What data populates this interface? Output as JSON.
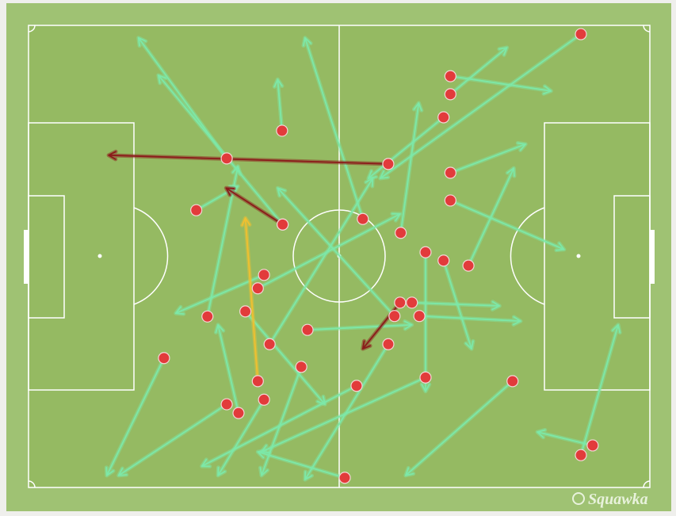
{
  "chart_data": {
    "type": "pass-map",
    "watermark": "Squawka",
    "xlim": [
      0,
      100
    ],
    "ylim": [
      0,
      100
    ],
    "dot_color": "#e23b3b",
    "passes": [
      {
        "x": 88.9,
        "y": 1.9,
        "end_x": 56.6,
        "end_y": 33.1,
        "color": "#7de8a8"
      },
      {
        "x": 67.9,
        "y": 11.0,
        "end_x": 84.1,
        "end_y": 14.2,
        "color": "#7de8a8"
      },
      {
        "x": 67.9,
        "y": 14.9,
        "end_x": 77.0,
        "end_y": 4.8,
        "color": "#7de8a8"
      },
      {
        "x": 66.8,
        "y": 19.9,
        "end_x": 54.7,
        "end_y": 33.1,
        "color": "#7de8a8"
      },
      {
        "x": 67.9,
        "y": 31.9,
        "end_x": 80.0,
        "end_y": 25.7,
        "color": "#7de8a8"
      },
      {
        "x": 67.9,
        "y": 37.9,
        "end_x": 86.2,
        "end_y": 48.5,
        "color": "#7de8a8"
      },
      {
        "x": 70.8,
        "y": 52.0,
        "end_x": 78.1,
        "end_y": 30.9,
        "color": "#7de8a8"
      },
      {
        "x": 66.8,
        "y": 50.9,
        "end_x": 71.3,
        "end_y": 70.0,
        "color": "#7de8a8"
      },
      {
        "x": 63.9,
        "y": 49.1,
        "end_x": 63.9,
        "end_y": 79.2,
        "color": "#7de8a8"
      },
      {
        "x": 59.9,
        "y": 44.9,
        "end_x": 62.8,
        "end_y": 16.8,
        "color": "#7de8a8"
      },
      {
        "x": 53.8,
        "y": 41.9,
        "end_x": 44.5,
        "end_y": 2.7,
        "color": "#7de8a8"
      },
      {
        "x": 40.8,
        "y": 22.8,
        "end_x": 40.1,
        "end_y": 11.7,
        "color": "#7de8a8"
      },
      {
        "x": 31.9,
        "y": 28.8,
        "end_x": 17.7,
        "end_y": 2.7,
        "color": "#7de8a8"
      },
      {
        "x": 27.0,
        "y": 40.0,
        "end_x": 33.7,
        "end_y": 34.8,
        "color": "#7de8a8"
      },
      {
        "x": 61.7,
        "y": 60.0,
        "end_x": 75.8,
        "end_y": 60.7,
        "color": "#7de8a8"
      },
      {
        "x": 62.9,
        "y": 62.9,
        "end_x": 79.2,
        "end_y": 64.0,
        "color": "#7de8a8"
      },
      {
        "x": 44.9,
        "y": 65.9,
        "end_x": 61.7,
        "end_y": 64.8,
        "color": "#7de8a8"
      },
      {
        "x": 21.8,
        "y": 72.0,
        "end_x": 12.6,
        "end_y": 97.4,
        "color": "#7de8a8"
      },
      {
        "x": 31.9,
        "y": 82.0,
        "end_x": 14.5,
        "end_y": 97.4,
        "color": "#7de8a8"
      },
      {
        "x": 57.9,
        "y": 69.0,
        "end_x": 44.5,
        "end_y": 98.3,
        "color": "#7de8a8"
      },
      {
        "x": 63.9,
        "y": 76.2,
        "end_x": 37.5,
        "end_y": 92.3,
        "color": "#7de8a8"
      },
      {
        "x": 77.9,
        "y": 77.0,
        "end_x": 60.7,
        "end_y": 97.4,
        "color": "#7de8a8"
      },
      {
        "x": 52.8,
        "y": 78.0,
        "end_x": 27.9,
        "end_y": 95.4,
        "color": "#7de8a8"
      },
      {
        "x": 50.9,
        "y": 97.9,
        "end_x": 36.9,
        "end_y": 92.3,
        "color": "#7de8a8"
      },
      {
        "x": 90.8,
        "y": 90.9,
        "end_x": 81.9,
        "end_y": 88.0,
        "color": "#7de8a8"
      },
      {
        "x": 88.9,
        "y": 93.0,
        "end_x": 94.9,
        "end_y": 64.8,
        "color": "#7de8a8"
      },
      {
        "x": 37.9,
        "y": 81.0,
        "end_x": 30.5,
        "end_y": 97.4,
        "color": "#7de8a8"
      },
      {
        "x": 43.9,
        "y": 73.9,
        "end_x": 37.5,
        "end_y": 97.4,
        "color": "#7de8a8"
      },
      {
        "x": 37.9,
        "y": 54.0,
        "end_x": 23.7,
        "end_y": 62.3,
        "color": "#7de8a8"
      },
      {
        "x": 28.8,
        "y": 63.0,
        "end_x": 33.7,
        "end_y": 30.5,
        "color": "#7de8a8"
      },
      {
        "x": 34.9,
        "y": 61.9,
        "end_x": 47.7,
        "end_y": 82.0,
        "color": "#7de8a8"
      },
      {
        "x": 40.9,
        "y": 43.1,
        "end_x": 20.9,
        "end_y": 10.8,
        "color": "#7de8a8"
      },
      {
        "x": 36.9,
        "y": 56.9,
        "end_x": 59.8,
        "end_y": 40.8,
        "color": "#7de8a8"
      },
      {
        "x": 38.8,
        "y": 69.0,
        "end_x": 55.4,
        "end_y": 33.1,
        "color": "#7de8a8"
      },
      {
        "x": 33.8,
        "y": 83.9,
        "end_x": 30.5,
        "end_y": 64.8,
        "color": "#7de8a8"
      },
      {
        "x": 58.9,
        "y": 62.9,
        "end_x": 40.1,
        "end_y": 35.2,
        "color": "#7de8a8"
      },
      {
        "x": 57.9,
        "y": 30.0,
        "end_x": 12.9,
        "end_y": 28.1,
        "color": "#8b1a1a"
      },
      {
        "x": 40.9,
        "y": 43.1,
        "end_x": 31.8,
        "end_y": 35.2,
        "color": "#8b1a1a"
      },
      {
        "x": 59.8,
        "y": 60.0,
        "end_x": 53.8,
        "end_y": 70.0,
        "color": "#8b1a1a"
      },
      {
        "x": 36.9,
        "y": 77.0,
        "end_x": 34.9,
        "end_y": 41.7,
        "color": "#f0c030"
      }
    ]
  }
}
